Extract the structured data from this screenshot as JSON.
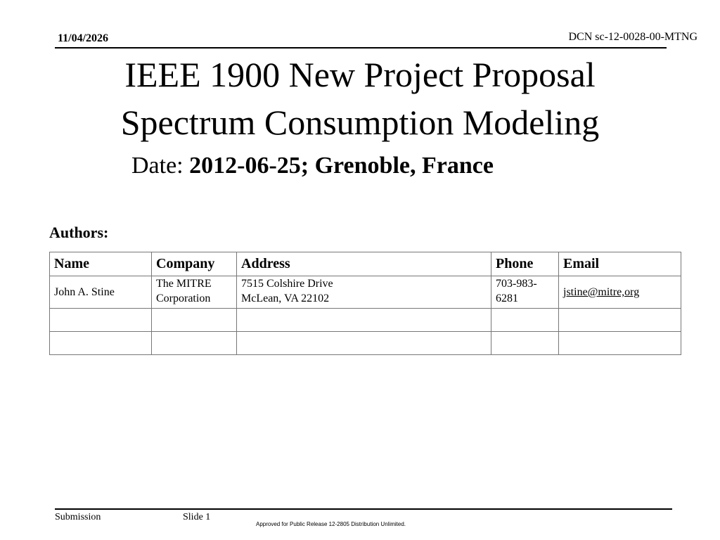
{
  "header": {
    "date": "11/04/2026",
    "doc_id": "DCN sc-12-0028-00-MTNG"
  },
  "title": {
    "line1": "IEEE 1900 New Project Proposal",
    "line2": "Spectrum Consumption Modeling"
  },
  "dateline": {
    "label": "Date:",
    "value": "2012-06-25; Grenoble, France"
  },
  "authors": {
    "label": "Authors:",
    "columns": [
      "Name",
      "Company",
      "Address",
      "Phone",
      "Email"
    ],
    "rows": [
      {
        "name": "John A. Stine",
        "company_line1": "The MITRE",
        "company_line2": "Corporation",
        "address_line1": "7515 Colshire Drive",
        "address_line2": "McLean, VA 22102",
        "phone_line1": "703-983-",
        "phone_line2": "6281",
        "email": "jstine@mitre,org"
      }
    ]
  },
  "footer": {
    "submission": "Submission",
    "slide": "Slide 1",
    "release": "Approved for Public Release 12-2805  Distribution Unlimited."
  }
}
